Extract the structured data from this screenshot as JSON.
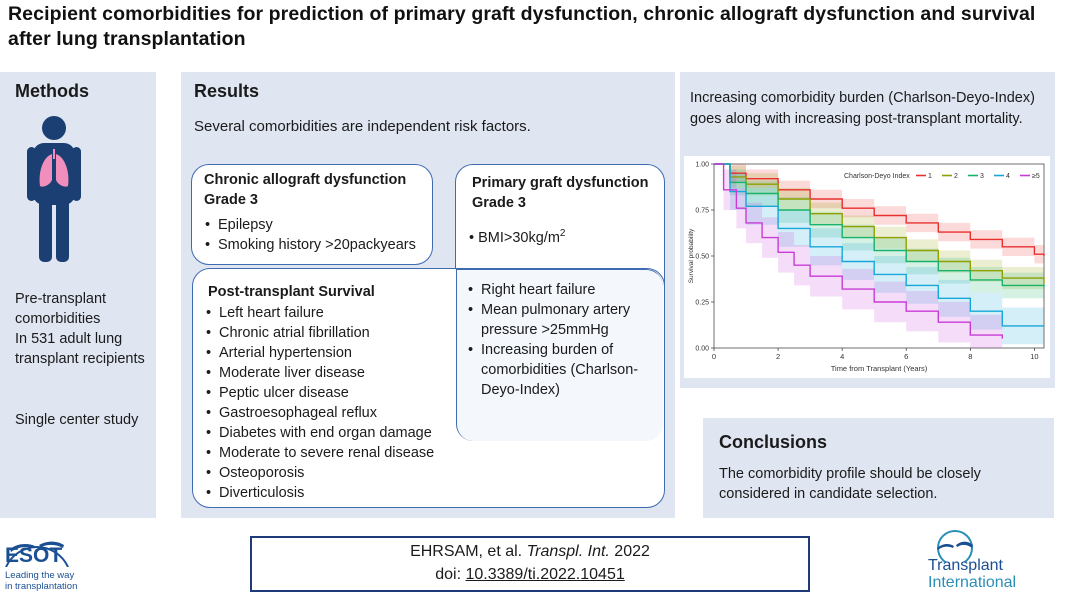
{
  "title": "Recipient comorbidities for prediction of primary graft dysfunction, chronic allograft dysfunction and survival after lung transplantation",
  "methods": {
    "heading": "Methods",
    "icon": "person-lungs-icon",
    "text1": "Pre-transplant comorbidities",
    "text2": "In 531 adult lung transplant recipients",
    "text3": "Single center study"
  },
  "results": {
    "heading": "Results",
    "intro": "Several comorbidities are independent risk factors.",
    "cad": {
      "title": "Chronic allograft dysfunction Grade 3",
      "items": [
        "Epilepsy",
        "Smoking history >20packyears"
      ]
    },
    "pgd": {
      "title": "Primary graft dysfunction Grade 3",
      "bmi_base": "BMI>30kg/m",
      "bmi_sup": "2",
      "items": [
        "Right heart failure",
        "Mean pulmonary artery pressure >25mmHg",
        "Increasing burden of comorbidities (Charlson-Deyo-Index)"
      ]
    },
    "survival": {
      "title": "Post-transplant Survival",
      "items": [
        "Left heart failure",
        "Chronic atrial fibrillation",
        "Arterial hypertension",
        "Moderate liver disease",
        "Peptic ulcer disease",
        "Gastroesophageal reflux",
        "Diabetes with end organ damage",
        "Moderate to severe renal disease",
        "Osteoporosis",
        "Diverticulosis"
      ]
    }
  },
  "chart_panel": {
    "caption": "Increasing comorbidity burden (Charlson-Deyo-Index) goes along with increasing post-transplant mortality."
  },
  "chart_data": {
    "type": "line",
    "title": "",
    "xlabel": "Time from Transplant (Years)",
    "ylabel": "Survival probability",
    "xlim": [
      0,
      10.3
    ],
    "ylim": [
      0,
      1.0
    ],
    "xticks": [
      0,
      2,
      4,
      6,
      8,
      10
    ],
    "yticks": [
      0.0,
      0.25,
      0.5,
      0.75,
      1.0
    ],
    "ytick_labels": [
      "0.00",
      "0.25",
      "0.50",
      "0.75",
      "1.00"
    ],
    "legend_title": "Charlson-Deyo Index",
    "legend_position": "top-right",
    "series": [
      {
        "name": "1",
        "color": "#e8302f",
        "x": [
          0,
          0.5,
          1,
          2,
          3,
          4,
          5,
          6,
          7,
          8,
          9,
          10,
          10.3
        ],
        "y": [
          1.0,
          0.95,
          0.92,
          0.86,
          0.81,
          0.76,
          0.72,
          0.68,
          0.63,
          0.59,
          0.55,
          0.51,
          0.5
        ],
        "band": 0.05
      },
      {
        "name": "2",
        "color": "#8fa000",
        "x": [
          0,
          0.5,
          1,
          2,
          3,
          4,
          5,
          6,
          7,
          8,
          9,
          10.3
        ],
        "y": [
          1.0,
          0.93,
          0.89,
          0.81,
          0.73,
          0.66,
          0.6,
          0.53,
          0.47,
          0.42,
          0.38,
          0.35
        ],
        "band": 0.06
      },
      {
        "name": "3",
        "color": "#18b36a",
        "x": [
          0,
          0.5,
          1,
          2,
          3,
          4,
          5,
          6,
          7,
          8,
          9,
          10.3
        ],
        "y": [
          1.0,
          0.9,
          0.84,
          0.75,
          0.67,
          0.6,
          0.53,
          0.47,
          0.42,
          0.37,
          0.34,
          0.33
        ],
        "band": 0.07
      },
      {
        "name": "4",
        "color": "#17a7d8",
        "x": [
          0,
          0.5,
          1,
          2,
          3,
          4,
          5,
          6,
          7,
          8,
          9,
          10.3
        ],
        "y": [
          1.0,
          0.85,
          0.77,
          0.65,
          0.55,
          0.47,
          0.4,
          0.34,
          0.27,
          0.2,
          0.12,
          0.12
        ],
        "band": 0.1
      },
      {
        "name": "≥5",
        "color": "#c83cd6",
        "x": [
          0,
          0.3,
          0.7,
          1,
          1.5,
          2,
          2.5,
          3,
          4,
          5,
          6,
          7,
          8,
          9
        ],
        "y": [
          1.0,
          0.86,
          0.76,
          0.68,
          0.6,
          0.52,
          0.45,
          0.39,
          0.32,
          0.25,
          0.2,
          0.14,
          0.07,
          0.05
        ],
        "band": 0.11
      }
    ]
  },
  "conclusions": {
    "heading": "Conclusions",
    "text": "The comorbidity profile should be closely considered in candidate selection."
  },
  "citation": {
    "prefix": "EHRSAM, et al. ",
    "journal": "Transpl. Int.",
    "year": " 2022",
    "doi_label": "doi: ",
    "doi": "10.3389/ti.2022.10451"
  },
  "logos": {
    "esot": {
      "name": "ESOT",
      "tagline1": "Leading the way",
      "tagline2": "in transplantation",
      "icon": "hands-logo-icon"
    },
    "ti": {
      "line1": "Transplant",
      "line2": "International",
      "icon": "hands-logo-icon"
    }
  },
  "colors": {
    "panel": "#dfe5f1",
    "box_border": "#3f6bb0",
    "cite_border": "#1f3a78",
    "esot_blue": "#1b4f93",
    "ti_blue": "#2a8fb8"
  }
}
